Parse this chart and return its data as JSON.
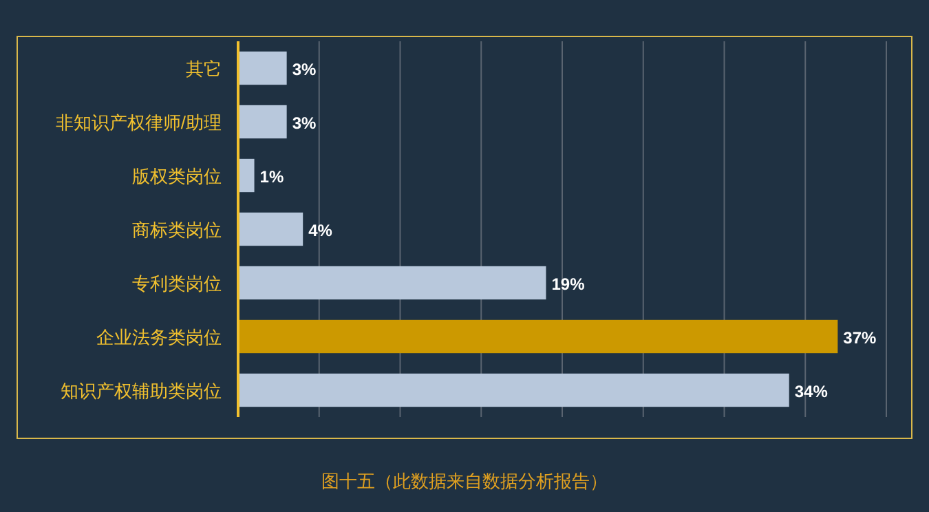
{
  "chart_data": {
    "type": "bar",
    "orientation": "horizontal",
    "categories": [
      "其它",
      "非知识产权律师/助理",
      "版权类岗位",
      "商标类岗位",
      "专利类岗位",
      "企业法务类岗位",
      "知识产权辅助类岗位"
    ],
    "values": [
      3,
      3,
      1,
      4,
      19,
      37,
      34
    ],
    "colors": [
      "#b8c8dc",
      "#b8c8dc",
      "#b8c8dc",
      "#b8c8dc",
      "#b8c8dc",
      "#cc9900",
      "#b8c8dc"
    ],
    "value_labels": [
      "3%",
      "3%",
      "1%",
      "4%",
      "19%",
      "37%",
      "34%"
    ],
    "xlim": [
      0,
      40
    ],
    "xticks": [
      {
        "value": 5,
        "label": null
      },
      {
        "value": 10,
        "label": null
      },
      {
        "value": 15,
        "label": null
      },
      {
        "value": 20,
        "label": null
      },
      {
        "value": 25,
        "label": null
      },
      {
        "value": 30,
        "label": null
      },
      {
        "value": 35,
        "label": null
      },
      {
        "value": 40,
        "label": null
      }
    ],
    "tick_labels": "y",
    "grid": "x",
    "annotations": [
      "图十五（此数据来自数据分析报告）"
    ]
  }
}
